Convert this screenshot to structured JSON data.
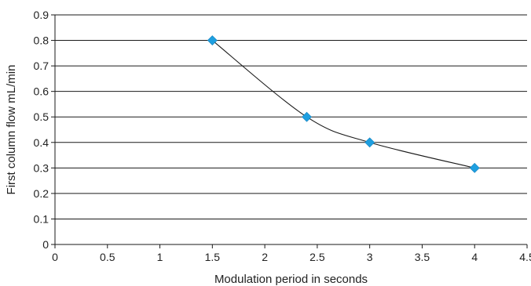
{
  "chart_data": {
    "type": "scatter",
    "title": "",
    "xlabel": "Modulation period in seconds",
    "ylabel": "First column flow mL/min",
    "xlim": [
      0,
      4.5
    ],
    "ylim": [
      0,
      0.9
    ],
    "x_ticks": [
      0,
      0.5,
      1,
      1.5,
      2,
      2.5,
      3,
      3.5,
      4,
      4.5
    ],
    "x_tick_labels": [
      "0",
      "0.5",
      "1",
      "1.5",
      "2",
      "2.5",
      "3",
      "3.5",
      "4",
      "4.5"
    ],
    "y_ticks": [
      0,
      0.1,
      0.2,
      0.3,
      0.4,
      0.5,
      0.6,
      0.7,
      0.8,
      0.9
    ],
    "y_tick_labels": [
      "0",
      "0.1",
      "0.2",
      "0.3",
      "0.4",
      "0.5",
      "0.6",
      "0.7",
      "0.8",
      "0.9"
    ],
    "grid": "horizontal",
    "legend": "none",
    "series": [
      {
        "x": [
          1.5,
          2.4,
          3,
          4
        ],
        "y": [
          0.8,
          0.5,
          0.4,
          0.3
        ],
        "marker": "diamond",
        "marker_color": "#1e9fe0",
        "line": "smooth",
        "line_color": "#1a1a1a"
      }
    ]
  }
}
